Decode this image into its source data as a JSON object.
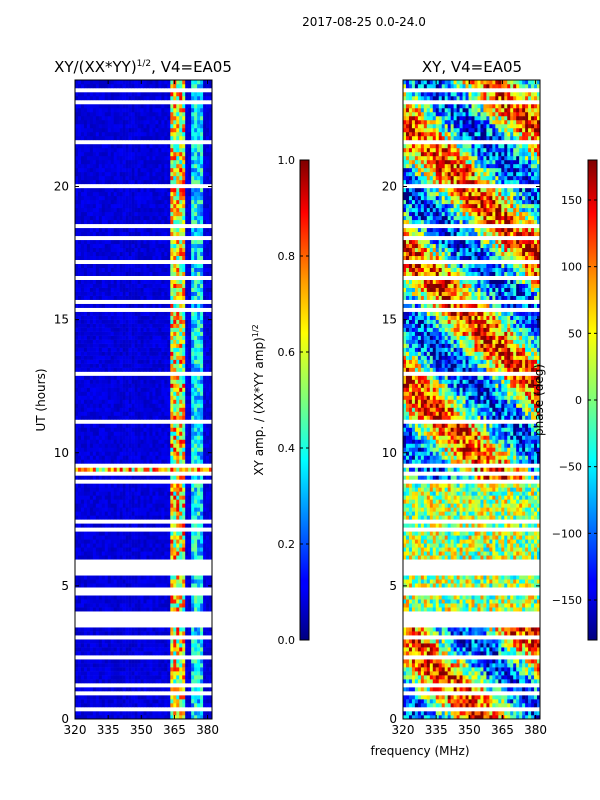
{
  "suptitle": "2017-08-25 0.0-24.0",
  "shared": {
    "xlabel": "frequency (MHz)"
  },
  "chart_data": [
    {
      "type": "heatmap",
      "title_main": "XY/(XX*YY)",
      "title_sup": "1/2",
      "title_rest": ", V4=EA05",
      "ylabel": "UT (hours)",
      "xlim": [
        320,
        382
      ],
      "ylim": [
        0,
        24
      ],
      "xticks": [
        320,
        335,
        350,
        365,
        380
      ],
      "yticks": [
        0,
        5,
        10,
        15,
        20
      ],
      "colorbar": {
        "label_main": "XY amp. / (XX*YY amp)",
        "label_sup": "1/2",
        "min": 0.0,
        "max": 1.0,
        "ticks": [
          "0.0",
          "0.2",
          "0.4",
          "0.6",
          "0.8",
          "1.0"
        ],
        "colormap": "jet"
      },
      "white_gaps_hours": [
        [
          3.4,
          4.0
        ],
        [
          5.4,
          6.0
        ],
        [
          16.5,
          16.7
        ],
        [
          18.0,
          18.2
        ],
        [
          0.3,
          0.45
        ],
        [
          1.2,
          1.35
        ],
        [
          2.3,
          2.4
        ],
        [
          7.0,
          7.1
        ],
        [
          8.2,
          8.3
        ]
      ],
      "bright_band_mhz": [
        363,
        370
      ],
      "secondary_band_mhz": [
        373,
        378
      ]
    },
    {
      "type": "heatmap",
      "title": "XY, V4=EA05",
      "xlim": [
        320,
        382
      ],
      "ylim": [
        0,
        24
      ],
      "xticks": [
        320,
        335,
        350,
        365,
        380
      ],
      "yticks": [
        0,
        5,
        10,
        15,
        20
      ],
      "colorbar": {
        "label": "phase (deg)",
        "min": -180,
        "max": 180,
        "ticks": [
          "−150",
          "−100",
          "−50",
          "0",
          "50",
          "100",
          "150"
        ],
        "colormap": "jet"
      },
      "white_gaps_hours": [
        [
          3.4,
          4.0
        ],
        [
          5.4,
          6.0
        ],
        [
          16.5,
          16.7
        ],
        [
          18.0,
          18.2
        ],
        [
          0.3,
          0.45
        ],
        [
          1.2,
          1.35
        ],
        [
          2.3,
          2.4
        ],
        [
          7.0,
          7.1
        ],
        [
          8.2,
          8.3
        ]
      ]
    }
  ]
}
